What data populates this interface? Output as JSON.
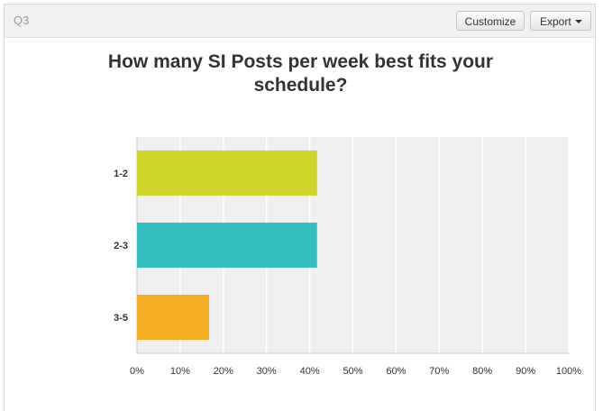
{
  "question": {
    "label": "Q3"
  },
  "toolbar": {
    "customize_label": "Customize",
    "export_label": "Export"
  },
  "chart_data": {
    "type": "bar",
    "orientation": "horizontal",
    "title": "How many SI Posts per week best fits your schedule?",
    "categories": [
      "1-2",
      "2-3",
      "3-5"
    ],
    "values": [
      41.7,
      41.7,
      16.7
    ],
    "colors": [
      "#cdd52a",
      "#35bfbe",
      "#f6af22"
    ],
    "xlim": [
      0,
      100
    ],
    "xticks": [
      "0%",
      "10%",
      "20%",
      "30%",
      "40%",
      "50%",
      "60%",
      "70%",
      "80%",
      "90%",
      "100%"
    ],
    "grid": true,
    "xlabel": "",
    "ylabel": ""
  }
}
